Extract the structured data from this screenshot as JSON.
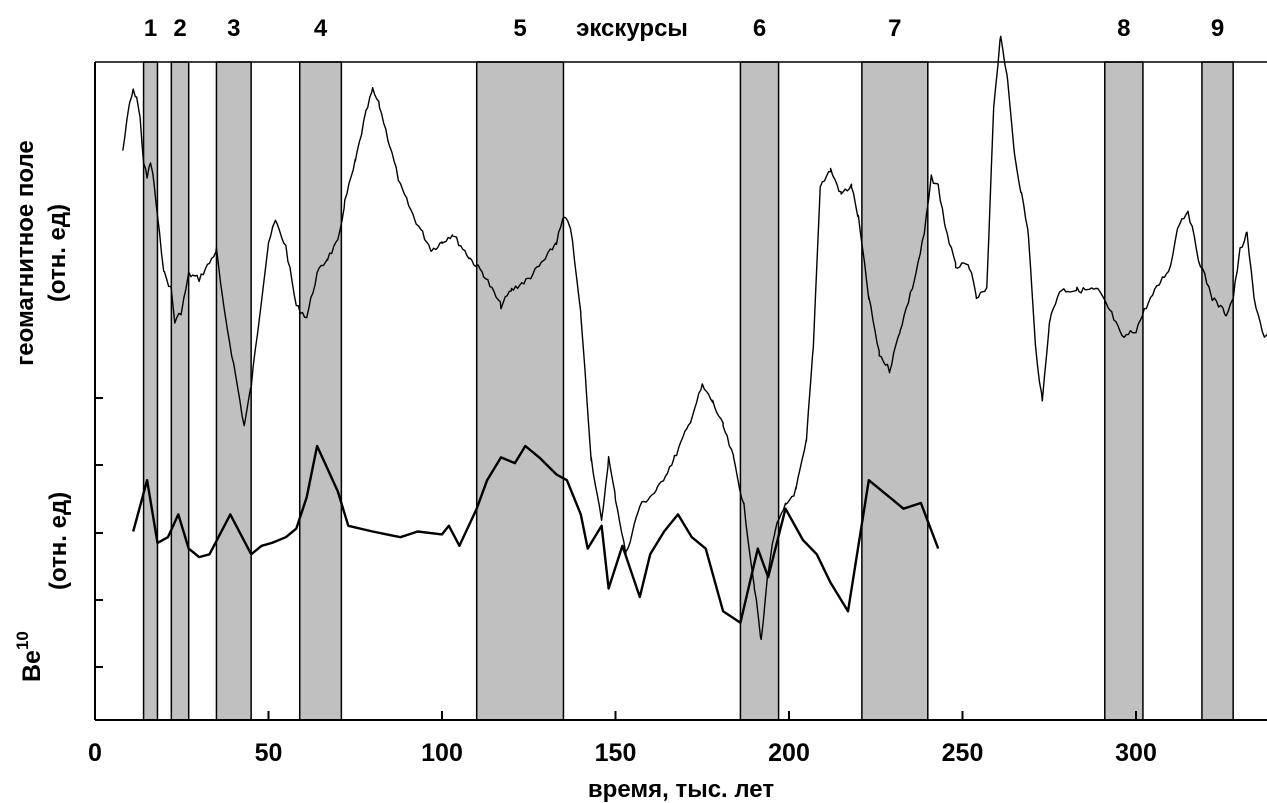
{
  "chart_data": {
    "type": "line",
    "title": "",
    "xlabel": "время, тыс. лет",
    "xlim": [
      0,
      340
    ],
    "x_ticks": [
      0,
      50,
      100,
      150,
      200,
      250,
      300
    ],
    "excursions_label": "экскурсы",
    "excursions": [
      {
        "label": "1",
        "from": 14,
        "to": 18
      },
      {
        "label": "2",
        "from": 22,
        "to": 27
      },
      {
        "label": "3",
        "from": 35,
        "to": 45
      },
      {
        "label": "4",
        "from": 59,
        "to": 71
      },
      {
        "label": "5",
        "from": 110,
        "to": 135
      },
      {
        "label": "6",
        "from": 186,
        "to": 197
      },
      {
        "label": "7",
        "from": 221,
        "to": 240
      },
      {
        "label": "8",
        "from": 291,
        "to": 302
      },
      {
        "label": "9",
        "from": 319,
        "to": 328
      }
    ],
    "grid": false,
    "series": [
      {
        "ylabel": [
          "геомагнитное поле",
          "(отн. ед)"
        ],
        "noisy": true,
        "points": [
          [
            8,
            0.62
          ],
          [
            10,
            0.92
          ],
          [
            11,
            0.99
          ],
          [
            12,
            0.96
          ],
          [
            13,
            0.82
          ],
          [
            14,
            0.55
          ],
          [
            15,
            0.45
          ],
          [
            16,
            0.55
          ],
          [
            17,
            0.42
          ],
          [
            18,
            0.2
          ],
          [
            20,
            -0.15
          ],
          [
            22,
            -0.25
          ],
          [
            23,
            -0.45
          ],
          [
            25,
            -0.38
          ],
          [
            27,
            -0.15
          ],
          [
            30,
            -0.18
          ],
          [
            33,
            -0.08
          ],
          [
            35,
            0.0
          ],
          [
            37,
            -0.35
          ],
          [
            40,
            -0.72
          ],
          [
            43,
            -1.1
          ],
          [
            45,
            -0.85
          ],
          [
            48,
            -0.3
          ],
          [
            50,
            0.05
          ],
          [
            52,
            0.18
          ],
          [
            55,
            0.02
          ],
          [
            58,
            -0.35
          ],
          [
            61,
            -0.42
          ],
          [
            64,
            -0.15
          ],
          [
            67,
            -0.05
          ],
          [
            70,
            0.05
          ],
          [
            72,
            0.3
          ],
          [
            75,
            0.55
          ],
          [
            78,
            0.85
          ],
          [
            80,
            1.0
          ],
          [
            82,
            0.9
          ],
          [
            85,
            0.65
          ],
          [
            88,
            0.4
          ],
          [
            92,
            0.2
          ],
          [
            97,
            0.0
          ],
          [
            100,
            0.05
          ],
          [
            103,
            0.1
          ],
          [
            108,
            -0.05
          ],
          [
            112,
            -0.15
          ],
          [
            117,
            -0.35
          ],
          [
            120,
            -0.25
          ],
          [
            125,
            -0.18
          ],
          [
            130,
            -0.05
          ],
          [
            133,
            0.05
          ],
          [
            135,
            0.2
          ],
          [
            137,
            0.15
          ],
          [
            140,
            -0.4
          ],
          [
            143,
            -1.3
          ],
          [
            146,
            -1.7
          ],
          [
            148,
            -1.3
          ],
          [
            150,
            -1.55
          ],
          [
            153,
            -1.9
          ],
          [
            157,
            -1.6
          ],
          [
            162,
            -1.5
          ],
          [
            167,
            -1.3
          ],
          [
            171,
            -1.1
          ],
          [
            175,
            -0.85
          ],
          [
            178,
            -0.95
          ],
          [
            181,
            -1.1
          ],
          [
            184,
            -1.3
          ],
          [
            187,
            -1.6
          ],
          [
            190,
            -2.1
          ],
          [
            192,
            -2.45
          ],
          [
            194,
            -2.0
          ],
          [
            196,
            -1.75
          ],
          [
            199,
            -1.6
          ],
          [
            202,
            -1.5
          ],
          [
            205,
            -1.2
          ],
          [
            207,
            -0.6
          ],
          [
            209,
            0.4
          ],
          [
            212,
            0.5
          ],
          [
            215,
            0.35
          ],
          [
            218,
            0.4
          ],
          [
            220,
            0.2
          ],
          [
            223,
            -0.3
          ],
          [
            226,
            -0.65
          ],
          [
            229,
            -0.75
          ],
          [
            232,
            -0.5
          ],
          [
            236,
            -0.2
          ],
          [
            239,
            0.1
          ],
          [
            241,
            0.45
          ],
          [
            243,
            0.4
          ],
          [
            245,
            0.15
          ],
          [
            248,
            -0.1
          ],
          [
            252,
            -0.1
          ],
          [
            254,
            -0.3
          ],
          [
            257,
            -0.25
          ],
          [
            259,
            0.9
          ],
          [
            261,
            1.35
          ],
          [
            263,
            1.05
          ],
          [
            265,
            0.6
          ],
          [
            267,
            0.35
          ],
          [
            269,
            0.1
          ],
          [
            271,
            -0.6
          ],
          [
            273,
            -0.95
          ],
          [
            275,
            -0.45
          ],
          [
            278,
            -0.25
          ],
          [
            283,
            -0.25
          ],
          [
            289,
            -0.25
          ],
          [
            293,
            -0.4
          ],
          [
            296,
            -0.55
          ],
          [
            300,
            -0.5
          ],
          [
            303,
            -0.35
          ],
          [
            307,
            -0.2
          ],
          [
            310,
            -0.1
          ],
          [
            312,
            0.15
          ],
          [
            315,
            0.25
          ],
          [
            318,
            -0.05
          ],
          [
            322,
            -0.3
          ],
          [
            326,
            -0.4
          ],
          [
            328,
            -0.3
          ],
          [
            330,
            0.0
          ],
          [
            332,
            0.1
          ],
          [
            334,
            -0.3
          ],
          [
            337,
            -0.55
          ],
          [
            340,
            -0.5
          ]
        ]
      },
      {
        "ylabel": [
          "Be",
          "10",
          "(отн. ед)"
        ],
        "noisy": false,
        "points": [
          [
            11,
            0.5
          ],
          [
            15,
            1.4
          ],
          [
            18,
            0.3
          ],
          [
            21,
            0.4
          ],
          [
            24,
            0.8
          ],
          [
            27,
            0.2
          ],
          [
            30,
            0.05
          ],
          [
            33,
            0.1
          ],
          [
            39,
            0.8
          ],
          [
            45,
            0.1
          ],
          [
            48,
            0.25
          ],
          [
            51,
            0.3
          ],
          [
            55,
            0.4
          ],
          [
            58,
            0.55
          ],
          [
            61,
            1.1
          ],
          [
            64,
            2.0
          ],
          [
            67,
            1.6
          ],
          [
            70,
            1.2
          ],
          [
            73,
            0.6
          ],
          [
            80,
            0.5
          ],
          [
            88,
            0.4
          ],
          [
            93,
            0.5
          ],
          [
            100,
            0.45
          ],
          [
            102,
            0.6
          ],
          [
            105,
            0.25
          ],
          [
            110,
            0.9
          ],
          [
            113,
            1.4
          ],
          [
            117,
            1.8
          ],
          [
            121,
            1.7
          ],
          [
            124,
            2.0
          ],
          [
            128,
            1.8
          ],
          [
            133,
            1.5
          ],
          [
            136,
            1.4
          ],
          [
            140,
            0.8
          ],
          [
            142,
            0.2
          ],
          [
            146,
            0.6
          ],
          [
            148,
            -0.5
          ],
          [
            152,
            0.25
          ],
          [
            157,
            -0.65
          ],
          [
            160,
            0.1
          ],
          [
            164,
            0.5
          ],
          [
            168,
            0.8
          ],
          [
            172,
            0.4
          ],
          [
            176,
            0.2
          ],
          [
            181,
            -0.9
          ],
          [
            186,
            -1.1
          ],
          [
            191,
            0.2
          ],
          [
            194,
            -0.3
          ],
          [
            199,
            0.9
          ],
          [
            204,
            0.35
          ],
          [
            208,
            0.1
          ],
          [
            212,
            -0.4
          ],
          [
            217,
            -0.9
          ],
          [
            223,
            1.4
          ],
          [
            228,
            1.15
          ],
          [
            233,
            0.9
          ],
          [
            238,
            1.0
          ],
          [
            243,
            0.2
          ]
        ]
      }
    ]
  }
}
